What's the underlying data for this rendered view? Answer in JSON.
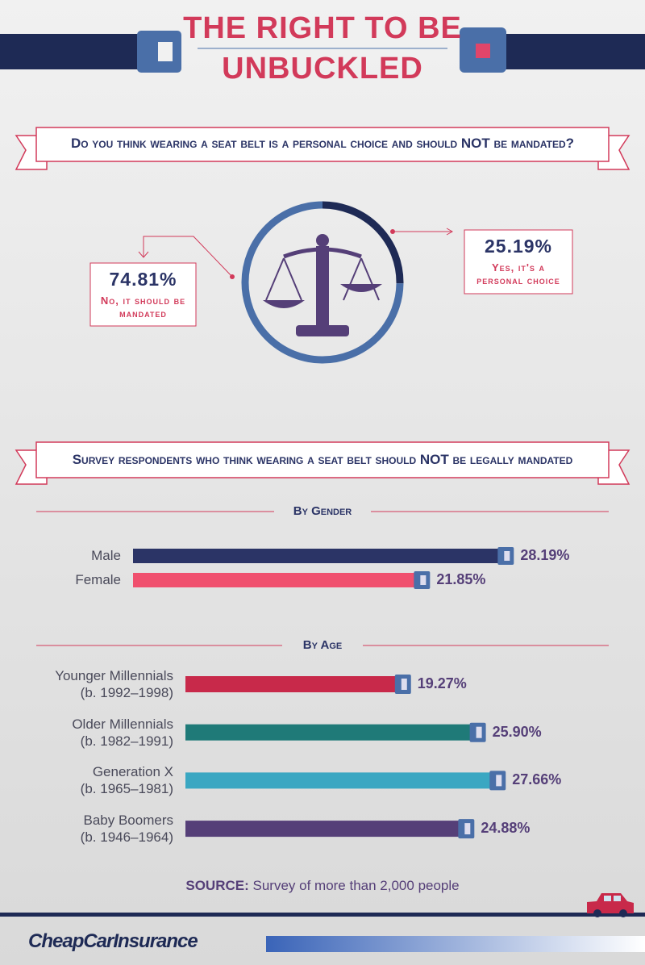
{
  "header": {
    "title_lines": [
      "THE RIGHT TO BE",
      "UNBUCKLED"
    ]
  },
  "question": "Do you think wearing a seat belt is a personal choice and should NOT be mandated?",
  "section_heading": "Survey respondents who think wearing a seat belt should NOT be legally mandated",
  "chart_data": [
    {
      "type": "pie",
      "categories": [
        "No, it should be mandated",
        "Yes, it's a personal choice"
      ],
      "values": [
        74.81,
        25.19
      ],
      "value_labels": [
        "74.81%",
        "25.19%"
      ],
      "colors": [
        "#4a6fa8",
        "#1e2a55"
      ]
    },
    {
      "type": "bar",
      "title": "By Gender",
      "categories": [
        "Male",
        "Female"
      ],
      "values": [
        28.19,
        21.85
      ],
      "value_labels": [
        "28.19%",
        "21.85%"
      ],
      "colors": [
        "#2b3466",
        "#f0506e"
      ]
    },
    {
      "type": "bar",
      "title": "By Age",
      "categories": [
        "Younger Millennials",
        "Older Millennials",
        "Generation X",
        "Baby Boomers"
      ],
      "category_years": [
        "(b. 1992–1998)",
        "(b. 1982–1991)",
        "(b. 1965–1981)",
        "(b. 1946–1964)"
      ],
      "values": [
        19.27,
        25.9,
        27.66,
        24.88
      ],
      "value_labels": [
        "19.27%",
        "25.90%",
        "27.66%",
        "24.88%"
      ],
      "colors": [
        "#c8294a",
        "#1f7a78",
        "#3aa7c2",
        "#553f78"
      ]
    }
  ],
  "source": {
    "label": "SOURCE:",
    "text": "Survey of more than 2,000 people"
  },
  "logo": "CheapCarInsurance"
}
